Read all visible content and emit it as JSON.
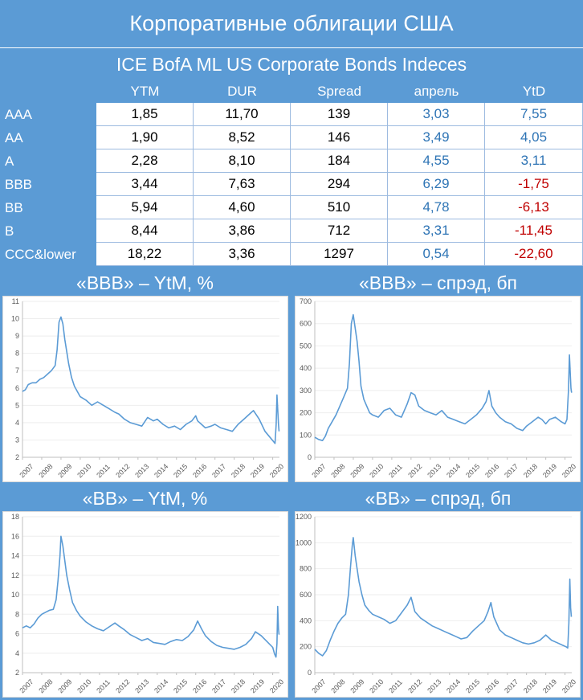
{
  "header": {
    "title": "Корпоративные облигации США",
    "subtitle": "ICE BofA ML US Corporate Bonds Indeces"
  },
  "table": {
    "columns": [
      "YTM",
      "DUR",
      "Spread",
      "апрель",
      "YtD"
    ],
    "rows": [
      {
        "label": "AAA",
        "cells": [
          "1,85",
          "11,70",
          "139",
          "3,03",
          "7,55"
        ]
      },
      {
        "label": "AA",
        "cells": [
          "1,90",
          "8,52",
          "146",
          "3,49",
          "4,05"
        ]
      },
      {
        "label": "A",
        "cells": [
          "2,28",
          "8,10",
          "184",
          "4,55",
          "3,11"
        ]
      },
      {
        "label": "BBB",
        "cells": [
          "3,44",
          "7,63",
          "294",
          "6,29",
          "-1,75"
        ]
      },
      {
        "label": "BB",
        "cells": [
          "5,94",
          "4,60",
          "510",
          "4,78",
          "-6,13"
        ]
      },
      {
        "label": "B",
        "cells": [
          "8,44",
          "3,86",
          "712",
          "3,31",
          "-11,45"
        ]
      },
      {
        "label": "CCC&lower",
        "cells": [
          "18,22",
          "3,36",
          "1297",
          "0,54",
          "-22,60"
        ]
      }
    ],
    "colors": {
      "value": "#000000",
      "monthly": "#2e74b5",
      "negative": "#c00000",
      "positive": "#2e74b5"
    }
  },
  "chart_data": [
    {
      "type": "line",
      "title": "«BBB» – YtM, %",
      "x_ticks": [
        "2007",
        "2008",
        "2009",
        "2010",
        "2011",
        "2012",
        "2013",
        "2014",
        "2015",
        "2016",
        "2017",
        "2018",
        "2019",
        "2020"
      ],
      "y_ticks": [
        "2",
        "3",
        "4",
        "5",
        "6",
        "7",
        "8",
        "9",
        "10",
        "11"
      ],
      "xlim": [
        2007,
        2020.35
      ],
      "ylim": [
        2,
        11
      ],
      "series": [
        {
          "color": "#5b9bd5",
          "x": [
            2007.0,
            2007.15,
            2007.3,
            2007.5,
            2007.7,
            2007.9,
            2008.1,
            2008.3,
            2008.5,
            2008.7,
            2008.8,
            2008.9,
            2009.0,
            2009.1,
            2009.2,
            2009.3,
            2009.4,
            2009.55,
            2009.7,
            2009.85,
            2010.0,
            2010.3,
            2010.6,
            2010.9,
            2011.2,
            2011.5,
            2011.8,
            2012.0,
            2012.3,
            2012.6,
            2012.9,
            2013.2,
            2013.5,
            2013.8,
            2014.0,
            2014.3,
            2014.6,
            2014.9,
            2015.2,
            2015.5,
            2015.8,
            2016.0,
            2016.1,
            2016.3,
            2016.5,
            2016.8,
            2017.0,
            2017.3,
            2017.6,
            2017.9,
            2018.2,
            2018.5,
            2018.8,
            2019.0,
            2019.3,
            2019.6,
            2019.9,
            2020.05,
            2020.12,
            2020.18,
            2020.22,
            2020.26,
            2020.3,
            2020.33
          ],
          "y": [
            5.8,
            5.9,
            6.2,
            6.3,
            6.3,
            6.5,
            6.6,
            6.8,
            7.0,
            7.3,
            8.2,
            9.8,
            10.1,
            9.7,
            8.8,
            8.1,
            7.4,
            6.6,
            6.1,
            5.8,
            5.5,
            5.3,
            5.0,
            5.2,
            5.0,
            4.8,
            4.6,
            4.5,
            4.2,
            4.0,
            3.9,
            3.8,
            4.3,
            4.1,
            4.2,
            3.9,
            3.7,
            3.8,
            3.6,
            3.9,
            4.1,
            4.4,
            4.1,
            3.9,
            3.7,
            3.8,
            3.9,
            3.7,
            3.6,
            3.5,
            3.9,
            4.2,
            4.5,
            4.7,
            4.2,
            3.5,
            3.1,
            2.9,
            2.8,
            3.9,
            5.6,
            4.8,
            3.9,
            3.5
          ]
        }
      ]
    },
    {
      "type": "line",
      "title": "«BBB» – спрэд, бп",
      "x_ticks": [
        "2007",
        "2008",
        "2009",
        "2010",
        "2011",
        "2012",
        "2013",
        "2014",
        "2015",
        "2016",
        "2017",
        "2018",
        "2019",
        "2020"
      ],
      "y_ticks": [
        "0",
        "100",
        "200",
        "300",
        "400",
        "500",
        "600",
        "700"
      ],
      "xlim": [
        2007,
        2020.35
      ],
      "ylim": [
        0,
        700
      ],
      "series": [
        {
          "color": "#5b9bd5",
          "x": [
            2007.0,
            2007.2,
            2007.4,
            2007.55,
            2007.7,
            2007.9,
            2008.1,
            2008.3,
            2008.5,
            2008.7,
            2008.8,
            2008.9,
            2009.0,
            2009.1,
            2009.2,
            2009.3,
            2009.4,
            2009.55,
            2009.7,
            2009.85,
            2010.0,
            2010.3,
            2010.6,
            2010.9,
            2011.2,
            2011.5,
            2011.8,
            2012.0,
            2012.2,
            2012.4,
            2012.7,
            2013.0,
            2013.3,
            2013.6,
            2013.9,
            2014.2,
            2014.5,
            2014.8,
            2015.1,
            2015.4,
            2015.7,
            2015.9,
            2016.05,
            2016.2,
            2016.4,
            2016.6,
            2016.9,
            2017.2,
            2017.5,
            2017.8,
            2018.0,
            2018.3,
            2018.6,
            2018.8,
            2019.0,
            2019.2,
            2019.5,
            2019.8,
            2020.0,
            2020.1,
            2020.18,
            2020.23,
            2020.27,
            2020.31,
            2020.34
          ],
          "y": [
            90,
            80,
            75,
            95,
            130,
            160,
            190,
            230,
            270,
            310,
            420,
            600,
            640,
            580,
            520,
            430,
            320,
            260,
            230,
            200,
            190,
            180,
            210,
            220,
            190,
            180,
            240,
            290,
            280,
            230,
            210,
            200,
            190,
            210,
            180,
            170,
            160,
            150,
            170,
            190,
            220,
            250,
            300,
            230,
            200,
            180,
            160,
            150,
            130,
            120,
            140,
            160,
            180,
            170,
            150,
            170,
            180,
            160,
            150,
            170,
            300,
            460,
            380,
            310,
            290
          ]
        }
      ]
    },
    {
      "type": "line",
      "title": "«BB» – YtM, %",
      "x_ticks": [
        "2007",
        "2008",
        "2009",
        "2010",
        "2011",
        "2012",
        "2013",
        "2014",
        "2015",
        "2016",
        "2017",
        "2018",
        "2019",
        "2020"
      ],
      "y_ticks": [
        "2",
        "4",
        "6",
        "8",
        "10",
        "12",
        "14",
        "16",
        "18"
      ],
      "xlim": [
        2007,
        2020.35
      ],
      "ylim": [
        2,
        18
      ],
      "series": [
        {
          "color": "#5b9bd5",
          "x": [
            2007.0,
            2007.2,
            2007.4,
            2007.6,
            2007.8,
            2008.0,
            2008.2,
            2008.4,
            2008.6,
            2008.75,
            2008.85,
            2008.95,
            2009.0,
            2009.1,
            2009.2,
            2009.3,
            2009.45,
            2009.6,
            2009.8,
            2010.0,
            2010.3,
            2010.6,
            2010.9,
            2011.2,
            2011.5,
            2011.8,
            2012.0,
            2012.3,
            2012.6,
            2012.9,
            2013.2,
            2013.5,
            2013.8,
            2014.1,
            2014.4,
            2014.7,
            2015.0,
            2015.3,
            2015.6,
            2015.9,
            2016.1,
            2016.3,
            2016.5,
            2016.8,
            2017.1,
            2017.4,
            2017.7,
            2018.0,
            2018.3,
            2018.6,
            2018.9,
            2019.1,
            2019.4,
            2019.7,
            2020.0,
            2020.1,
            2020.17,
            2020.22,
            2020.26,
            2020.3,
            2020.33
          ],
          "y": [
            6.6,
            6.8,
            6.6,
            7.0,
            7.6,
            8.0,
            8.2,
            8.4,
            8.5,
            9.5,
            11.5,
            14.0,
            16.0,
            15.0,
            13.5,
            12.0,
            10.5,
            9.2,
            8.4,
            7.8,
            7.2,
            6.8,
            6.5,
            6.3,
            6.7,
            7.1,
            6.8,
            6.4,
            5.9,
            5.6,
            5.3,
            5.5,
            5.1,
            5.0,
            4.9,
            5.2,
            5.4,
            5.3,
            5.7,
            6.4,
            7.3,
            6.5,
            5.8,
            5.2,
            4.8,
            4.6,
            4.5,
            4.4,
            4.6,
            4.9,
            5.5,
            6.2,
            5.8,
            5.2,
            4.6,
            3.9,
            3.6,
            5.0,
            8.8,
            6.5,
            5.9
          ]
        }
      ]
    },
    {
      "type": "line",
      "title": "«BB» – спрэд, бп",
      "x_ticks": [
        "2007",
        "2008",
        "2009",
        "2010",
        "2011",
        "2012",
        "2013",
        "2014",
        "2015",
        "2016",
        "2017",
        "2018",
        "2019",
        "2020"
      ],
      "y_ticks": [
        "0",
        "200",
        "400",
        "600",
        "800",
        "1000",
        "1200"
      ],
      "xlim": [
        2007,
        2020.35
      ],
      "ylim": [
        0,
        1200
      ],
      "series": [
        {
          "color": "#5b9bd5",
          "x": [
            2007.0,
            2007.2,
            2007.4,
            2007.6,
            2007.8,
            2008.0,
            2008.2,
            2008.4,
            2008.6,
            2008.75,
            2008.85,
            2008.95,
            2009.0,
            2009.1,
            2009.2,
            2009.3,
            2009.45,
            2009.6,
            2009.8,
            2010.0,
            2010.3,
            2010.6,
            2010.9,
            2011.2,
            2011.5,
            2011.8,
            2012.0,
            2012.2,
            2012.5,
            2012.8,
            2013.1,
            2013.4,
            2013.7,
            2014.0,
            2014.3,
            2014.6,
            2014.9,
            2015.2,
            2015.5,
            2015.8,
            2016.0,
            2016.15,
            2016.3,
            2016.6,
            2016.9,
            2017.2,
            2017.5,
            2017.8,
            2018.1,
            2018.4,
            2018.7,
            2019.0,
            2019.3,
            2019.6,
            2019.9,
            2020.05,
            2020.14,
            2020.2,
            2020.25,
            2020.29,
            2020.33
          ],
          "y": [
            180,
            150,
            130,
            170,
            250,
            320,
            380,
            420,
            450,
            600,
            800,
            980,
            1040,
            900,
            800,
            700,
            600,
            520,
            480,
            450,
            430,
            410,
            380,
            400,
            460,
            520,
            580,
            470,
            420,
            390,
            360,
            340,
            320,
            300,
            280,
            260,
            270,
            320,
            360,
            400,
            470,
            540,
            430,
            330,
            290,
            270,
            250,
            230,
            220,
            230,
            250,
            290,
            250,
            230,
            210,
            200,
            190,
            380,
            720,
            500,
            430
          ]
        }
      ]
    }
  ]
}
